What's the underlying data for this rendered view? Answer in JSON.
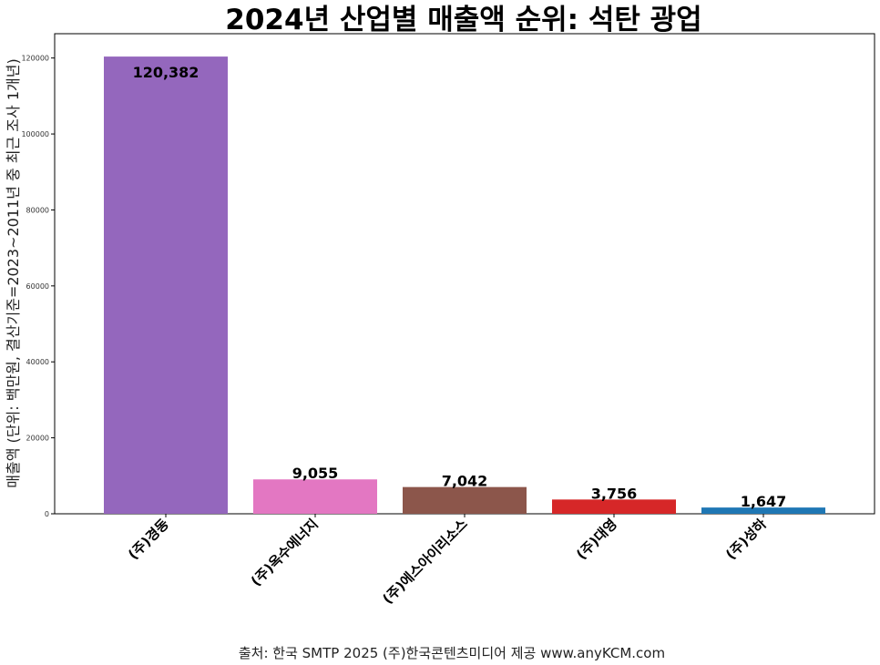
{
  "chart_data": {
    "type": "bar",
    "title": "2024년 산업별 매출액 순위: 석탄 광업",
    "ylabel": "매출액 (단위: 백만원, 결산기준=2023~2011년 중 최근 조사 1개년)",
    "xlabel": "",
    "categories": [
      "(주)경동",
      "(주)옥수에너지",
      "(주)에스아이리소스",
      "(주)대영",
      "(주)성하"
    ],
    "values": [
      120382,
      9055,
      7042,
      3756,
      1647
    ],
    "value_labels": [
      "120,382",
      "9,055",
      "7,042",
      "3,756",
      "1,647"
    ],
    "colors": [
      "#9467bd",
      "#e377c2",
      "#8c564b",
      "#d62728",
      "#1f77b4"
    ],
    "ylim": [
      0,
      126400
    ],
    "yticks": [
      0,
      20000,
      40000,
      60000,
      80000,
      100000,
      120000
    ],
    "ytick_labels": [
      "0",
      "20000",
      "40000",
      "60000",
      "80000",
      "100000",
      "120000"
    ],
    "grid": false,
    "legend": "none"
  },
  "footer": {
    "source": "출처: 한국 SMTP 2025  (주)한국콘텐츠미디어 제공  www.anyKCM.com"
  }
}
